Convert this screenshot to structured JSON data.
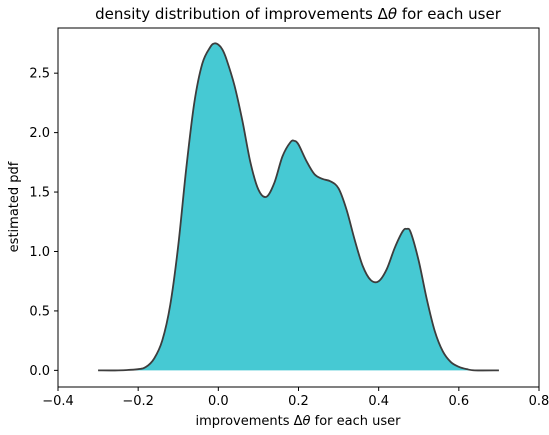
{
  "chart_data": {
    "type": "area",
    "title": {
      "prefix": "density distribution of improvements Δ",
      "symbol": "θ",
      "suffix": " for each user"
    },
    "xlabel": {
      "prefix": "improvements Δ",
      "symbol": "θ",
      "suffix": " for each user"
    },
    "ylabel": "estimated pdf",
    "xlim": [
      -0.4,
      0.8
    ],
    "ylim": [
      -0.14,
      2.88
    ],
    "xticks": [
      {
        "value": -0.4,
        "label": "−0.4"
      },
      {
        "value": -0.2,
        "label": "−0.2"
      },
      {
        "value": 0.0,
        "label": "0.0"
      },
      {
        "value": 0.2,
        "label": "0.2"
      },
      {
        "value": 0.4,
        "label": "0.4"
      },
      {
        "value": 0.6,
        "label": "0.6"
      },
      {
        "value": 0.8,
        "label": "0.8"
      }
    ],
    "yticks": [
      {
        "value": 0.0,
        "label": "0.0"
      },
      {
        "value": 0.5,
        "label": "0.5"
      },
      {
        "value": 1.0,
        "label": "1.0"
      },
      {
        "value": 1.5,
        "label": "1.5"
      },
      {
        "value": 2.0,
        "label": "2.0"
      },
      {
        "value": 2.5,
        "label": "2.5"
      }
    ],
    "grid": false,
    "legend": "none",
    "fill_color": "#46c9d3",
    "line_color": "#3d3d3d",
    "series": [
      {
        "x": [
          -0.3,
          -0.25,
          -0.2,
          -0.18,
          -0.16,
          -0.14,
          -0.12,
          -0.1,
          -0.08,
          -0.06,
          -0.04,
          -0.02,
          -0.01,
          0.0,
          0.01,
          0.02,
          0.04,
          0.06,
          0.08,
          0.1,
          0.12,
          0.14,
          0.16,
          0.18,
          0.19,
          0.2,
          0.22,
          0.24,
          0.26,
          0.28,
          0.3,
          0.32,
          0.34,
          0.36,
          0.38,
          0.4,
          0.42,
          0.44,
          0.46,
          0.47,
          0.48,
          0.5,
          0.52,
          0.54,
          0.56,
          0.58,
          0.6,
          0.62,
          0.64,
          0.7
        ],
        "y": [
          0.0,
          0.0,
          0.01,
          0.03,
          0.1,
          0.25,
          0.55,
          1.05,
          1.7,
          2.25,
          2.58,
          2.72,
          2.75,
          2.74,
          2.7,
          2.62,
          2.4,
          2.1,
          1.75,
          1.52,
          1.46,
          1.58,
          1.8,
          1.92,
          1.93,
          1.9,
          1.76,
          1.65,
          1.61,
          1.59,
          1.53,
          1.35,
          1.1,
          0.88,
          0.76,
          0.75,
          0.85,
          1.03,
          1.17,
          1.19,
          1.16,
          0.92,
          0.6,
          0.33,
          0.16,
          0.07,
          0.03,
          0.01,
          0.0,
          0.0
        ]
      }
    ]
  }
}
